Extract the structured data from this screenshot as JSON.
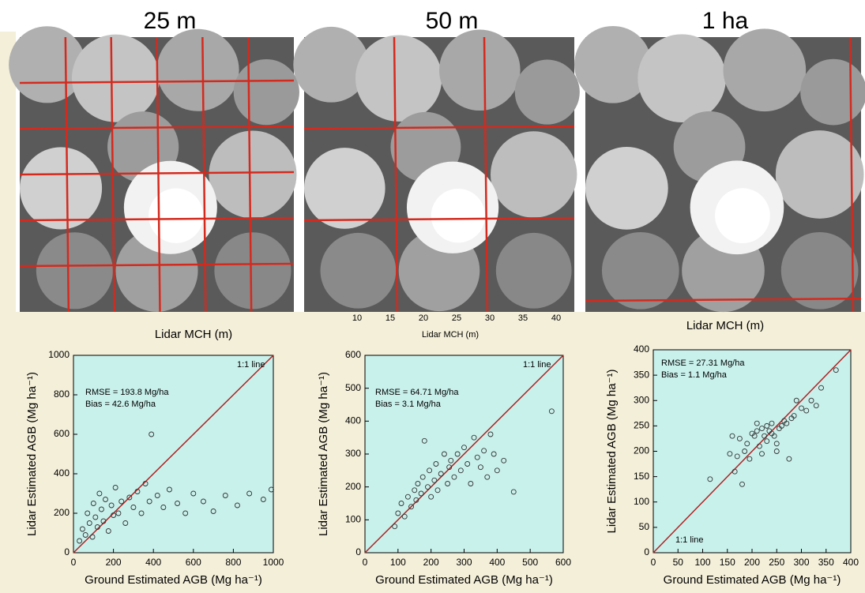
{
  "image_titles": [
    "25 m",
    "50 m",
    "1 ha"
  ],
  "mch_labels": [
    "Lidar MCH (m)",
    "Lidar MCH (m)",
    "Lidar MCH (m)"
  ],
  "middle_mch_ticks": [
    10,
    15,
    20,
    25,
    30,
    35,
    40
  ],
  "chart_data": [
    {
      "type": "scatter",
      "xlabel": "Ground Estimated AGB (Mg ha⁻¹)",
      "ylabel": "Lidar Estimated AGB (Mg ha⁻¹)",
      "annotations": [
        "1:1 line",
        "RMSE = 193.8 Mg/ha",
        "Bias = 42.6 Mg/ha"
      ],
      "xlim": [
        0,
        1000
      ],
      "xticks": [
        0,
        200,
        400,
        600,
        800,
        1000
      ],
      "ylim": [
        0,
        1000
      ],
      "yticks": [
        0,
        200,
        400,
        600,
        800,
        1000
      ],
      "color": "#333333",
      "x": [
        30,
        45,
        60,
        70,
        80,
        95,
        100,
        110,
        120,
        130,
        140,
        150,
        160,
        175,
        190,
        200,
        210,
        225,
        240,
        260,
        280,
        300,
        320,
        340,
        360,
        380,
        390,
        420,
        450,
        480,
        520,
        560,
        600,
        650,
        700,
        760,
        820,
        880,
        950,
        990
      ],
      "values": [
        60,
        120,
        90,
        200,
        150,
        80,
        250,
        180,
        130,
        300,
        220,
        160,
        270,
        110,
        240,
        190,
        330,
        200,
        260,
        150,
        280,
        230,
        310,
        200,
        350,
        260,
        600,
        290,
        230,
        320,
        250,
        200,
        300,
        260,
        210,
        290,
        240,
        300,
        270,
        320
      ]
    },
    {
      "type": "scatter",
      "xlabel": "Ground Estimated AGB (Mg ha⁻¹)",
      "ylabel": "Lidar Estimated AGB (Mg ha⁻¹)",
      "annotations": [
        "1:1 line",
        "RMSE = 64.71 Mg/ha",
        "Bias = 3.1 Mg/ha"
      ],
      "xlim": [
        0,
        600
      ],
      "xticks": [
        0,
        100,
        200,
        300,
        400,
        500,
        600
      ],
      "ylim": [
        0,
        600
      ],
      "yticks": [
        0,
        100,
        200,
        300,
        400,
        500,
        600
      ],
      "color": "#333333",
      "x": [
        90,
        100,
        110,
        120,
        130,
        140,
        150,
        155,
        160,
        170,
        175,
        180,
        190,
        195,
        200,
        210,
        215,
        220,
        230,
        240,
        250,
        255,
        260,
        270,
        280,
        290,
        300,
        310,
        320,
        330,
        340,
        350,
        360,
        370,
        380,
        390,
        400,
        420,
        450,
        565
      ],
      "values": [
        80,
        120,
        150,
        110,
        170,
        140,
        190,
        160,
        210,
        180,
        230,
        340,
        200,
        250,
        170,
        220,
        270,
        190,
        240,
        300,
        210,
        260,
        280,
        230,
        300,
        250,
        320,
        270,
        210,
        350,
        290,
        260,
        310,
        230,
        360,
        300,
        250,
        280,
        185,
        430
      ]
    },
    {
      "type": "scatter",
      "xlabel": "Ground Estimated AGB (Mg ha⁻¹)",
      "ylabel": "Lidar Estimated AGB (Mg ha⁻¹)",
      "annotations": [
        "1:1 line",
        "RMSE = 27.31 Mg/ha",
        "Bias = 1.1 Mg/ha"
      ],
      "xlim": [
        0,
        400
      ],
      "xticks": [
        0,
        50,
        100,
        150,
        200,
        250,
        300,
        350,
        400
      ],
      "ylim": [
        0,
        400
      ],
      "yticks": [
        0,
        50,
        100,
        150,
        200,
        250,
        300,
        350,
        400
      ],
      "color": "#333333",
      "x": [
        115,
        155,
        160,
        165,
        170,
        175,
        180,
        185,
        190,
        195,
        200,
        205,
        210,
        210,
        215,
        220,
        220,
        225,
        230,
        230,
        235,
        240,
        240,
        245,
        250,
        250,
        255,
        260,
        265,
        270,
        275,
        280,
        285,
        290,
        300,
        310,
        320,
        330,
        340,
        370
      ],
      "values": [
        145,
        195,
        230,
        160,
        190,
        225,
        135,
        200,
        215,
        185,
        235,
        230,
        255,
        240,
        210,
        195,
        245,
        230,
        250,
        220,
        240,
        235,
        255,
        230,
        215,
        200,
        245,
        250,
        260,
        255,
        185,
        265,
        270,
        300,
        285,
        280,
        300,
        290,
        325,
        360
      ]
    }
  ]
}
